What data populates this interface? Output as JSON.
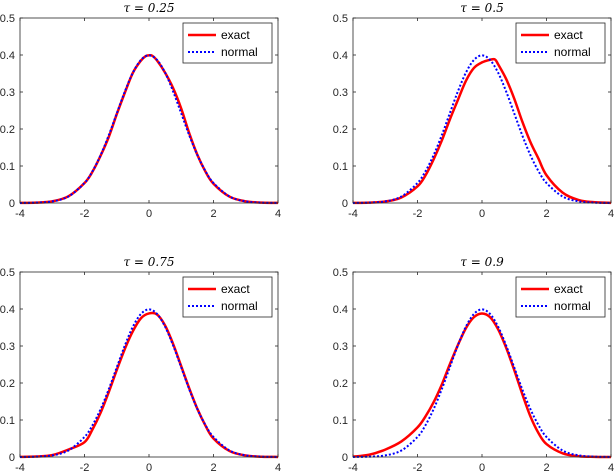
{
  "chart_data": [
    {
      "type": "line",
      "title": "τ = 0.25",
      "xlim": [
        -4,
        4
      ],
      "ylim": [
        0,
        0.5
      ],
      "xticks": [
        "-4",
        "-2",
        "0",
        "2",
        "4"
      ],
      "yticks": [
        "0",
        "0.1",
        "0.2",
        "0.3",
        "0.4",
        "0.5"
      ],
      "legend_position": "top-right",
      "series": [
        {
          "name": "exact",
          "color": "#ff0000",
          "style": "solid",
          "x": [
            -4,
            -3.5,
            -3,
            -2.5,
            -2,
            -1.75,
            -1.5,
            -1.25,
            -1,
            -0.75,
            -0.5,
            -0.25,
            -0.1,
            0,
            0.1,
            0.25,
            0.5,
            0.75,
            1,
            1.25,
            1.5,
            1.75,
            2,
            2.5,
            3,
            3.5,
            4
          ],
          "y": [
            0.0002,
            0.001,
            0.0045,
            0.018,
            0.054,
            0.085,
            0.128,
            0.178,
            0.24,
            0.298,
            0.352,
            0.385,
            0.397,
            0.399,
            0.398,
            0.385,
            0.352,
            0.31,
            0.255,
            0.188,
            0.13,
            0.085,
            0.052,
            0.017,
            0.0045,
            0.001,
            0.0002
          ]
        },
        {
          "name": "normal",
          "color": "#0000ff",
          "style": "dotted",
          "x": [
            -4,
            -3.5,
            -3,
            -2.5,
            -2,
            -1.75,
            -1.5,
            -1.25,
            -1,
            -0.75,
            -0.5,
            -0.25,
            0,
            0.25,
            0.5,
            0.75,
            1,
            1.25,
            1.5,
            1.75,
            2,
            2.5,
            3,
            3.5,
            4
          ],
          "y": [
            0.0001,
            0.0009,
            0.0044,
            0.0175,
            0.054,
            0.0863,
            0.1295,
            0.1826,
            0.242,
            0.3011,
            0.3521,
            0.3867,
            0.3989,
            0.3867,
            0.3521,
            0.3011,
            0.242,
            0.1826,
            0.1295,
            0.0863,
            0.054,
            0.0175,
            0.0044,
            0.0009,
            0.0001
          ]
        }
      ]
    },
    {
      "type": "line",
      "title": "τ = 0.5",
      "xlim": [
        -4,
        4
      ],
      "ylim": [
        0,
        0.5
      ],
      "xticks": [
        "-4",
        "-2",
        "0",
        "2",
        "4"
      ],
      "yticks": [
        "0",
        "0.1",
        "0.2",
        "0.3",
        "0.4",
        "0.5"
      ],
      "legend_position": "top-right",
      "series": [
        {
          "name": "exact",
          "color": "#ff0000",
          "style": "solid",
          "x": [
            -4,
            -3.5,
            -3,
            -2.5,
            -2,
            -1.75,
            -1.5,
            -1.25,
            -1,
            -0.75,
            -0.5,
            -0.25,
            0,
            0.25,
            0.4,
            0.5,
            0.75,
            1,
            1.25,
            1.5,
            1.75,
            2,
            2.5,
            3,
            3.5,
            4
          ],
          "y": [
            0.0002,
            0.001,
            0.004,
            0.015,
            0.045,
            0.075,
            0.118,
            0.168,
            0.225,
            0.278,
            0.33,
            0.365,
            0.38,
            0.387,
            0.388,
            0.375,
            0.335,
            0.282,
            0.22,
            0.165,
            0.12,
            0.075,
            0.028,
            0.008,
            0.002,
            0.0003
          ]
        },
        {
          "name": "normal",
          "color": "#0000ff",
          "style": "dotted",
          "x": [
            -4,
            -3.5,
            -3,
            -2.5,
            -2,
            -1.75,
            -1.5,
            -1.25,
            -1,
            -0.75,
            -0.5,
            -0.25,
            0,
            0.25,
            0.5,
            0.75,
            1,
            1.25,
            1.5,
            1.75,
            2,
            2.5,
            3,
            3.5,
            4
          ],
          "y": [
            0.0001,
            0.0009,
            0.0044,
            0.0175,
            0.054,
            0.0863,
            0.1295,
            0.1826,
            0.242,
            0.3011,
            0.3521,
            0.3867,
            0.3989,
            0.3867,
            0.3521,
            0.3011,
            0.242,
            0.1826,
            0.1295,
            0.0863,
            0.054,
            0.0175,
            0.0044,
            0.0009,
            0.0001
          ]
        }
      ]
    },
    {
      "type": "line",
      "title": "τ = 0.75",
      "xlim": [
        -4,
        4
      ],
      "ylim": [
        0,
        0.5
      ],
      "xticks": [
        "-4",
        "-2",
        "0",
        "2",
        "4"
      ],
      "yticks": [
        "0",
        "0.1",
        "0.2",
        "0.3",
        "0.4",
        "0.5"
      ],
      "legend_position": "top-right",
      "series": [
        {
          "name": "exact",
          "color": "#ff0000",
          "style": "solid",
          "x": [
            -4,
            -3.5,
            -3,
            -2.5,
            -2,
            -1.75,
            -1.5,
            -1.25,
            -1,
            -0.75,
            -0.5,
            -0.25,
            0,
            0.25,
            0.5,
            0.75,
            1,
            1.25,
            1.5,
            1.75,
            2,
            2.5,
            3,
            3.5,
            4
          ],
          "y": [
            0.0002,
            0.0012,
            0.005,
            0.02,
            0.04,
            0.075,
            0.12,
            0.175,
            0.235,
            0.292,
            0.34,
            0.375,
            0.388,
            0.385,
            0.355,
            0.305,
            0.245,
            0.185,
            0.13,
            0.085,
            0.05,
            0.016,
            0.004,
            0.0008,
            0.0001
          ]
        },
        {
          "name": "normal",
          "color": "#0000ff",
          "style": "dotted",
          "x": [
            -4,
            -3.5,
            -3,
            -2.5,
            -2,
            -1.75,
            -1.5,
            -1.25,
            -1,
            -0.75,
            -0.5,
            -0.25,
            0,
            0.25,
            0.5,
            0.75,
            1,
            1.25,
            1.5,
            1.75,
            2,
            2.5,
            3,
            3.5,
            4
          ],
          "y": [
            0.0001,
            0.0009,
            0.0044,
            0.0175,
            0.054,
            0.0863,
            0.1295,
            0.1826,
            0.242,
            0.3011,
            0.3521,
            0.3867,
            0.3989,
            0.3867,
            0.3521,
            0.3011,
            0.242,
            0.1826,
            0.1295,
            0.0863,
            0.054,
            0.0175,
            0.0044,
            0.0009,
            0.0001
          ]
        }
      ]
    },
    {
      "type": "line",
      "title": "τ = 0.9",
      "xlim": [
        -4,
        4
      ],
      "ylim": [
        0,
        0.5
      ],
      "xticks": [
        "-4",
        "-2",
        "0",
        "2",
        "4"
      ],
      "yticks": [
        "0",
        "0.1",
        "0.2",
        "0.3",
        "0.4",
        "0.5"
      ],
      "legend_position": "top-right",
      "series": [
        {
          "name": "exact",
          "color": "#ff0000",
          "style": "solid",
          "x": [
            -4,
            -3.5,
            -3,
            -2.5,
            -2,
            -1.75,
            -1.5,
            -1.25,
            -1,
            -0.75,
            -0.5,
            -0.25,
            0,
            0.25,
            0.5,
            0.75,
            1,
            1.25,
            1.5,
            1.75,
            2,
            2.5,
            3,
            3.5,
            4
          ],
          "y": [
            0.001,
            0.006,
            0.02,
            0.042,
            0.08,
            0.11,
            0.148,
            0.195,
            0.25,
            0.302,
            0.348,
            0.378,
            0.388,
            0.378,
            0.345,
            0.295,
            0.235,
            0.17,
            0.11,
            0.065,
            0.035,
            0.01,
            0.002,
            0.0004,
            0.0001
          ]
        },
        {
          "name": "normal",
          "color": "#0000ff",
          "style": "dotted",
          "x": [
            -4,
            -3.5,
            -3,
            -2.5,
            -2,
            -1.75,
            -1.5,
            -1.25,
            -1,
            -0.75,
            -0.5,
            -0.25,
            0,
            0.25,
            0.5,
            0.75,
            1,
            1.25,
            1.5,
            1.75,
            2,
            2.5,
            3,
            3.5,
            4
          ],
          "y": [
            0.0001,
            0.0009,
            0.0044,
            0.0175,
            0.054,
            0.0863,
            0.1295,
            0.1826,
            0.242,
            0.3011,
            0.3521,
            0.3867,
            0.3989,
            0.3867,
            0.3521,
            0.3011,
            0.242,
            0.1826,
            0.1295,
            0.0863,
            0.054,
            0.0175,
            0.0044,
            0.0009,
            0.0001
          ]
        }
      ]
    }
  ]
}
